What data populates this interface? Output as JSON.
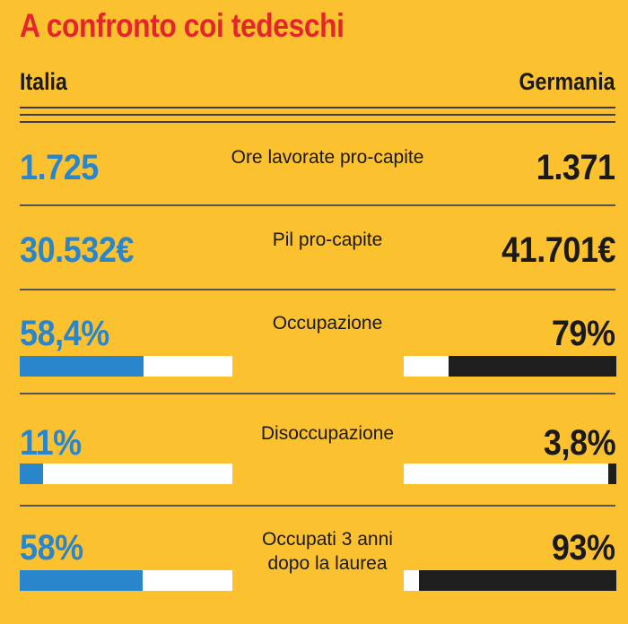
{
  "title": "A confronto coi tedeschi",
  "headers": {
    "left": "Italia",
    "right": "Germania"
  },
  "colors": {
    "background": "#fcc12e",
    "title": "#e3262b",
    "italia": "#2a86cc",
    "germania": "#1e1e1e",
    "bar_bg": "#ffffff"
  },
  "chart_data": {
    "type": "table",
    "title": "A confronto coi tedeschi",
    "columns": [
      "Italia",
      "Germania"
    ],
    "rows": [
      {
        "label": "Ore lavorate pro-capite",
        "italia": "1.725",
        "germania": "1.371"
      },
      {
        "label": "Pil pro-capite",
        "italia": "30.532€",
        "germania": "41.701€"
      },
      {
        "label": "Occupazione",
        "italia": "58,4%",
        "germania": "79%",
        "italia_pct": 58.4,
        "germania_pct": 79
      },
      {
        "label": "Disoccupazione",
        "italia": "11%",
        "germania": "3,8%",
        "italia_pct": 11,
        "germania_pct": 3.8
      },
      {
        "label": "Occupati 3 anni dopo la laurea",
        "label_lines": [
          "Occupati 3 anni",
          "dopo la laurea"
        ],
        "italia": "58%",
        "germania": "93%",
        "italia_pct": 58,
        "germania_pct": 93
      }
    ]
  }
}
